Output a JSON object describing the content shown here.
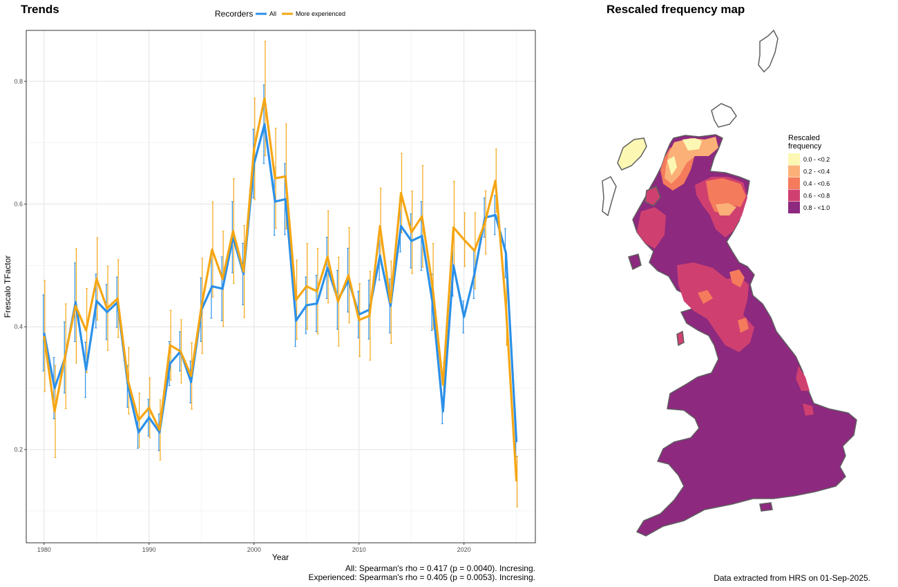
{
  "chart_data": [
    {
      "type": "line",
      "title": "Trends",
      "xlabel": "Year",
      "ylabel": "Frescalo TFactor",
      "xlim": [
        1978.3,
        2026.8
      ],
      "ylim": [
        0.048,
        0.883
      ],
      "x_ticks": [
        1980,
        1990,
        2000,
        2010,
        2020
      ],
      "y_ticks": [
        0.2,
        0.4,
        0.6,
        0.8
      ],
      "grid": true,
      "legend": {
        "title": "Recorders",
        "position": "top"
      },
      "x": [
        1980,
        1981,
        1982,
        1983,
        1984,
        1985,
        1986,
        1987,
        1988,
        1989,
        1990,
        1991,
        1992,
        1993,
        1994,
        1995,
        1996,
        1997,
        1998,
        1999,
        2000,
        2001,
        2002,
        2003,
        2004,
        2005,
        2006,
        2007,
        2008,
        2009,
        2010,
        2011,
        2012,
        2013,
        2014,
        2015,
        2016,
        2017,
        2018,
        2019,
        2020,
        2021,
        2022,
        2023,
        2024,
        2025
      ],
      "series": [
        {
          "name": "All",
          "color": "#2b90e8",
          "values": [
            0.39,
            0.3,
            0.35,
            0.44,
            0.33,
            0.442,
            0.424,
            0.44,
            0.303,
            0.228,
            0.252,
            0.228,
            0.34,
            0.36,
            0.31,
            0.428,
            0.466,
            0.462,
            0.546,
            0.486,
            0.666,
            0.73,
            0.604,
            0.608,
            0.41,
            0.435,
            0.438,
            0.496,
            0.444,
            0.476,
            0.42,
            0.428,
            0.516,
            0.434,
            0.564,
            0.54,
            0.548,
            0.44,
            0.262,
            0.5,
            0.416,
            0.486,
            0.578,
            0.582,
            0.52,
            0.212
          ],
          "errors": [
            0.062,
            0.05,
            0.058,
            0.064,
            0.045,
            0.044,
            0.045,
            0.041,
            0.034,
            0.026,
            0.03,
            0.03,
            0.036,
            0.032,
            0.034,
            0.052,
            0.052,
            0.052,
            0.058,
            0.05,
            0.056,
            0.064,
            0.055,
            0.058,
            0.042,
            0.046,
            0.046,
            0.05,
            0.048,
            0.052,
            0.038,
            0.048,
            0.04,
            0.044,
            0.042,
            0.044,
            0.056,
            0.046,
            0.02,
            0.05,
            0.026,
            0.04,
            0.032,
            0.032,
            0.04,
            0.024
          ]
        },
        {
          "name": "More experienced",
          "color": "#f5a614",
          "values": [
            0.385,
            0.262,
            0.352,
            0.434,
            0.394,
            0.478,
            0.43,
            0.446,
            0.312,
            0.248,
            0.268,
            0.232,
            0.37,
            0.36,
            0.32,
            0.434,
            0.526,
            0.478,
            0.556,
            0.49,
            0.69,
            0.772,
            0.642,
            0.645,
            0.444,
            0.466,
            0.458,
            0.514,
            0.441,
            0.484,
            0.411,
            0.418,
            0.564,
            0.44,
            0.618,
            0.554,
            0.58,
            0.466,
            0.306,
            0.562,
            0.542,
            0.524,
            0.57,
            0.638,
            0.432,
            0.148
          ]
        }
      ],
      "annotations": [
        "All: Spearman's rho = 0.417 (p = 0.0040). Incresing.",
        "Experienced: Spearman's rho = 0.405 (p = 0.0053). Incresing."
      ]
    },
    {
      "type": "heatmap",
      "title": "Rescaled frequency map",
      "legend": {
        "title_line1": "Rescaled",
        "title_line2": "frequency",
        "position": "right",
        "items": [
          {
            "label": "0.0 - <0.2",
            "color": "#fcf8b4"
          },
          {
            "label": "0.2 - <0.4",
            "color": "#fbb078"
          },
          {
            "label": "0.4 - <0.6",
            "color": "#f47b5c"
          },
          {
            "label": "0.6 - <0.8",
            "color": "#cf4070"
          },
          {
            "label": "0.8 - <1.0",
            "color": "#8d297f"
          }
        ]
      },
      "caption": "Data extracted from HRS on 01-Sep-2025."
    }
  ]
}
